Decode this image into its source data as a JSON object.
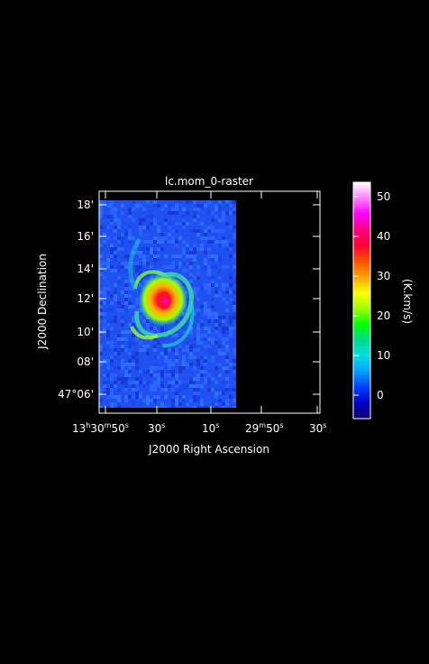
{
  "title": "lc.mom_0-raster",
  "axes": {
    "xlabel": "J2000 Right Ascension",
    "ylabel": "J2000 Declination",
    "x_ticks": [
      {
        "h": "13",
        "m": "30",
        "s": "50",
        "label": "13h30m50s"
      },
      {
        "s": "30",
        "label": "30s"
      },
      {
        "s": "10",
        "label": "10s"
      },
      {
        "m": "29",
        "s": "50",
        "label": "29m50s"
      },
      {
        "s": "30",
        "label": "30s"
      }
    ],
    "y_ticks": [
      "18'",
      "16'",
      "14'",
      "12'",
      "10'",
      "08'",
      "47°06'"
    ]
  },
  "colorbar": {
    "label": "(K.km/s)",
    "ticks": [
      "50",
      "40",
      "30",
      "20",
      "10",
      "0"
    ],
    "range": [
      -7,
      53
    ],
    "colors": [
      "#10006a",
      "#0000c8",
      "#0040ff",
      "#00a0ff",
      "#00e0e0",
      "#00d890",
      "#00ff00",
      "#a0ff00",
      "#ffff00",
      "#ffa000",
      "#ff5000",
      "#ff0030",
      "#ff0080",
      "#ff00ff",
      "#ff80ff",
      "#ffffff"
    ]
  },
  "colors": {
    "background": "#000000",
    "frame": "#ffffff",
    "map_base": "#2050f0"
  }
}
